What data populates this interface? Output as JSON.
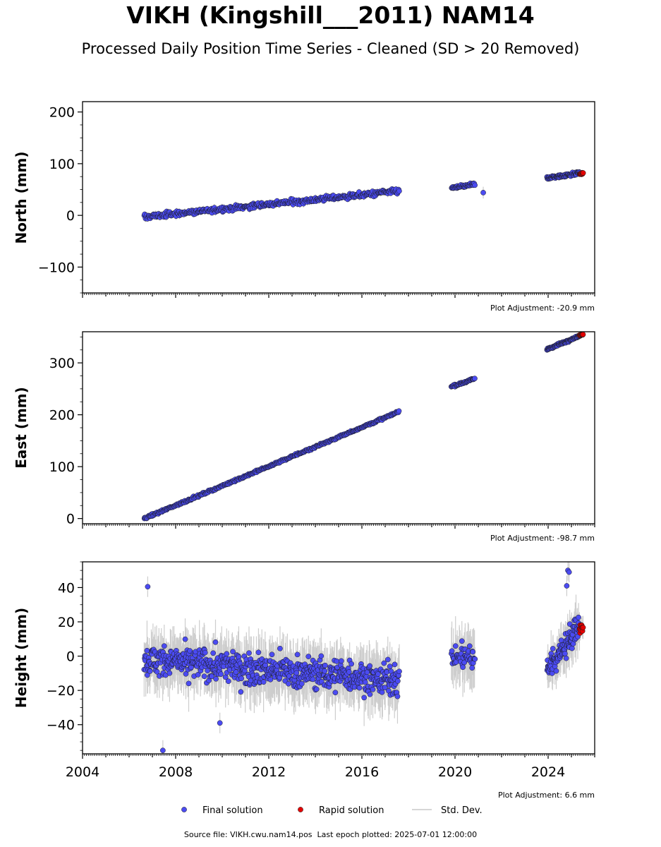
{
  "title": "VIKH (Kingshill___2011) NAM14",
  "subtitle": "Processed Daily Position Time Series - Cleaned (SD > 20 Removed)",
  "footer": "Source file: VIKH.cwu.nam14.pos  Last epoch plotted: 2025-07-01 12:00:00",
  "colors": {
    "final": "#4b4bf2",
    "rapid": "#e30000",
    "stddev": "#c8c8c8",
    "edge": "#1a1a1a"
  },
  "legend": {
    "final": "Final solution",
    "rapid": "Rapid solution",
    "stddev": "Std. Dev."
  },
  "chart_data": [
    {
      "type": "scatter",
      "ylabel": "North (mm)",
      "xlim": [
        2004.0,
        2026.0
      ],
      "ylim": [
        -150,
        220
      ],
      "yticks": [
        -100,
        0,
        100,
        200
      ],
      "ytick_labels": [
        "−100",
        "0",
        "100",
        "200"
      ],
      "xticks": [
        2004,
        2008,
        2012,
        2016,
        2020,
        2024
      ],
      "xtick_labels": [],
      "adjustment": "Plot Adjustment: -20.9 mm",
      "segments": [
        {
          "start": 2006.65,
          "end": 2017.6,
          "y0": -3,
          "y1": 47,
          "scatter": 5,
          "sd": 5,
          "n": 420,
          "series": "final"
        },
        {
          "start": 2019.85,
          "end": 2020.85,
          "y0": 53,
          "y1": 60,
          "scatter": 3,
          "sd": 4,
          "n": 45,
          "series": "final"
        },
        {
          "start": 2021.2,
          "end": 2021.22,
          "y0": 44,
          "y1": 44,
          "scatter": 0,
          "sd": 10,
          "n": 1,
          "series": "final"
        },
        {
          "start": 2023.95,
          "end": 2025.35,
          "y0": 72,
          "y1": 82,
          "scatter": 3,
          "sd": 4,
          "n": 90,
          "series": "final"
        },
        {
          "start": 2025.35,
          "end": 2025.5,
          "y0": 80,
          "y1": 82,
          "scatter": 2,
          "sd": 3,
          "n": 12,
          "series": "rapid"
        }
      ]
    },
    {
      "type": "scatter",
      "ylabel": "East (mm)",
      "xlim": [
        2004.0,
        2026.0
      ],
      "ylim": [
        -10,
        360
      ],
      "yticks": [
        0,
        100,
        200,
        300
      ],
      "ytick_labels": [
        "0",
        "100",
        "200",
        "300"
      ],
      "xticks": [
        2004,
        2008,
        2012,
        2016,
        2020,
        2024
      ],
      "xtick_labels": [],
      "adjustment": "Plot Adjustment: -98.7 mm",
      "segments": [
        {
          "start": 2006.65,
          "end": 2017.6,
          "y0": 0,
          "y1": 206,
          "scatter": 2,
          "sd": 3,
          "n": 420,
          "series": "final"
        },
        {
          "start": 2019.85,
          "end": 2020.85,
          "y0": 254,
          "y1": 270,
          "scatter": 2,
          "sd": 3,
          "n": 45,
          "series": "final"
        },
        {
          "start": 2023.95,
          "end": 2025.35,
          "y0": 326,
          "y1": 352,
          "scatter": 2,
          "sd": 3,
          "n": 90,
          "series": "final"
        },
        {
          "start": 2025.35,
          "end": 2025.5,
          "y0": 353,
          "y1": 355,
          "scatter": 1,
          "sd": 2,
          "n": 12,
          "series": "rapid"
        }
      ]
    },
    {
      "type": "scatter",
      "ylabel": "Height (mm)",
      "xlim": [
        2004.0,
        2026.0
      ],
      "ylim": [
        -57,
        55
      ],
      "yticks": [
        -40,
        -20,
        0,
        20,
        40
      ],
      "ytick_labels": [
        "−40",
        "−20",
        "0",
        "20",
        "40"
      ],
      "xticks": [
        2004,
        2008,
        2012,
        2016,
        2020,
        2024
      ],
      "xtick_labels": [
        "2004",
        "2008",
        "2012",
        "2016",
        "2020",
        "2024"
      ],
      "adjustment": "Plot Adjustment: 6.6 mm",
      "segments": [
        {
          "start": 2006.65,
          "end": 2017.6,
          "y0": -2,
          "y1": -14,
          "scatter": 9,
          "sd": 12,
          "n": 650,
          "series": "final"
        },
        {
          "start": 2019.85,
          "end": 2020.85,
          "y0": 0,
          "y1": 0,
          "scatter": 7,
          "sd": 12,
          "n": 50,
          "series": "final"
        },
        {
          "start": 2023.95,
          "end": 2025.35,
          "y0": -8,
          "y1": 18,
          "scatter": 7,
          "sd": 10,
          "n": 110,
          "series": "final"
        },
        {
          "start": 2025.35,
          "end": 2025.5,
          "y0": 16,
          "y1": 16,
          "scatter": 3,
          "sd": 5,
          "n": 12,
          "series": "rapid"
        }
      ],
      "outliers": [
        {
          "x": 2006.8,
          "y": 40.5
        },
        {
          "x": 2007.45,
          "y": -55
        },
        {
          "x": 2009.9,
          "y": -39
        },
        {
          "x": 2024.85,
          "y": 50
        },
        {
          "x": 2024.9,
          "y": 49
        },
        {
          "x": 2024.8,
          "y": 41
        }
      ]
    }
  ]
}
